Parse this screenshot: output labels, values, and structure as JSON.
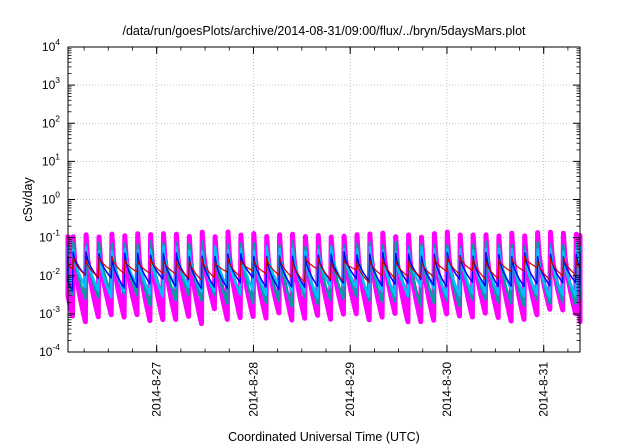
{
  "chart_data": {
    "type": "line",
    "title": "/data/run/goesPlots/archive/2014-08-31/09:00/flux/../bryn/5daysMars.plot",
    "xlabel": "Coordinated Universal Time (UTC)",
    "ylabel": "cSv/day",
    "yscale": "log",
    "ylim": [
      0.0001,
      10000
    ],
    "xlim": [
      "2014-08-26T02:00",
      "2014-08-31T09:00"
    ],
    "grid": true,
    "x_ticks": [
      "2014-8-27",
      "2014-8-28",
      "2014-8-29",
      "2014-8-30",
      "2014-8-31"
    ],
    "y_ticks": [
      {
        "base": "10",
        "exp": "4"
      },
      {
        "base": "10",
        "exp": "3"
      },
      {
        "base": "10",
        "exp": "2"
      },
      {
        "base": "10",
        "exp": "1"
      },
      {
        "base": "10",
        "exp": "0"
      },
      {
        "base": "10",
        "exp": "-1"
      },
      {
        "base": "10",
        "exp": "-2"
      },
      {
        "base": "10",
        "exp": "-3"
      },
      {
        "base": "10",
        "exp": "-4"
      }
    ],
    "series_style": {
      "cycle_hours": 3.2,
      "count": 6,
      "peak_range": [
        0.09,
        0.12
      ],
      "trough_range": [
        0.0006,
        0.0012
      ],
      "colors": [
        "#ff00ff",
        "#ff00ff",
        "#00a0a0",
        "#00c0ff",
        "#0000ff",
        "#cc0000"
      ]
    }
  }
}
